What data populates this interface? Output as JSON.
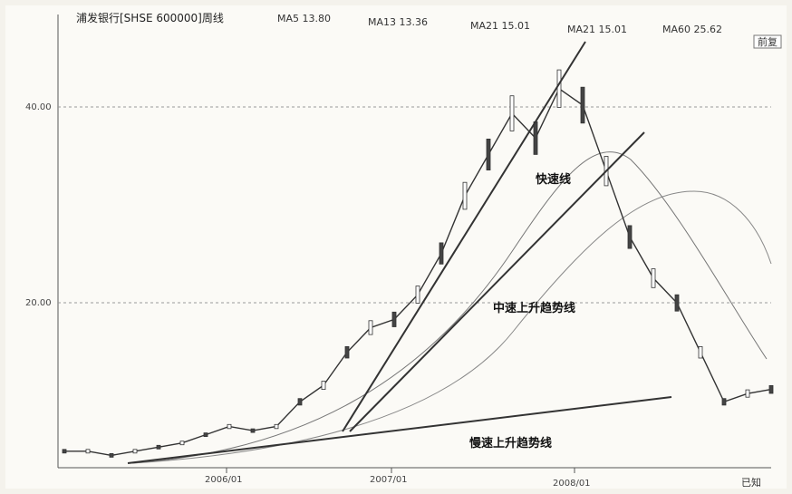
{
  "header": {
    "title": "浦发银行[SHSE 600000]周线",
    "ma_labels": [
      "MA5 13.80",
      "MA13 13.36",
      "MA21 15.01",
      "MA21 15.01",
      "MA60  25.62"
    ],
    "corner_button": "前复"
  },
  "chart_data": {
    "type": "line",
    "y_tick_labels": [
      "40.00",
      "20.00"
    ],
    "x_tick_labels": [
      "2006/01",
      "2007/01",
      "2008/01"
    ],
    "annotations": [
      "快速线",
      "中速上升趋势线",
      "慢速上升趋势线"
    ],
    "ylim": [
      0,
      55
    ],
    "grid": true,
    "series": [
      {
        "x": [
          "2005/01",
          "2005/03",
          "2005/06",
          "2005/09",
          "2006/01",
          "2006/03",
          "2006/05",
          "2006/07",
          "2006/09",
          "2006/11",
          "2007/01",
          "2007/02",
          "2007/03",
          "2007/04",
          "2007/05",
          "2007/06",
          "2007/07",
          "2007/08",
          "2007/09",
          "2007/10",
          "2007/11",
          "2007/12",
          "2008/01",
          "2008/02",
          "2008/03",
          "2008/04",
          "2008/06",
          "2008/08",
          "2008/10",
          "2008/11",
          "2008/12"
        ],
        "values": [
          2,
          2,
          1.5,
          2,
          2.5,
          3,
          4,
          5,
          4.5,
          5,
          8,
          10,
          14,
          17,
          18,
          21,
          26,
          33,
          38,
          43,
          40,
          46,
          44,
          36,
          28,
          23,
          20,
          14,
          8,
          9,
          9.5
        ]
      }
    ]
  },
  "footer": {
    "partial_text": "已知"
  }
}
